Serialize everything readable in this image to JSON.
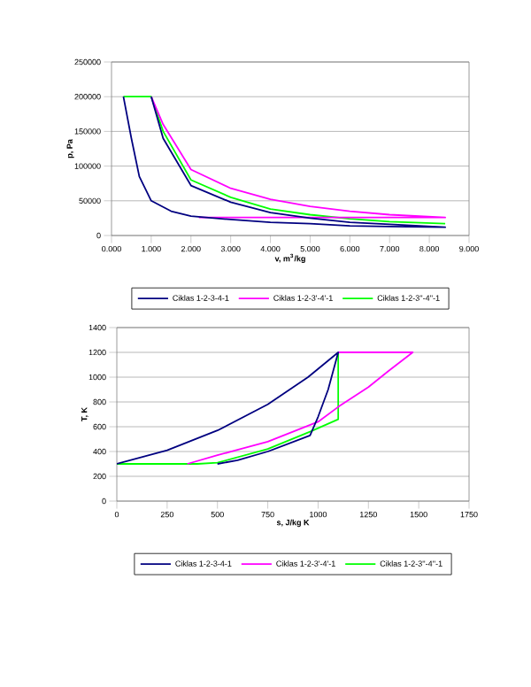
{
  "chart_data": [
    {
      "type": "line",
      "xlabel": "v, m$^{3}$/kg",
      "ylabel": "p, Pa",
      "xlim": [
        0,
        9
      ],
      "ylim": [
        0,
        250000
      ],
      "xticks": [
        {
          "value": 0,
          "label": "0.000"
        },
        {
          "value": 1,
          "label": "1.000"
        },
        {
          "value": 2,
          "label": "2.000"
        },
        {
          "value": 3,
          "label": "3.000"
        },
        {
          "value": 4,
          "label": "4.000"
        },
        {
          "value": 5,
          "label": "5.000"
        },
        {
          "value": 6,
          "label": "6.000"
        },
        {
          "value": 7,
          "label": "7.000"
        },
        {
          "value": 8,
          "label": "8.000"
        },
        {
          "value": 9,
          "label": "9.000"
        }
      ],
      "yticks": [
        0,
        50000,
        100000,
        150000,
        200000,
        250000
      ],
      "grid": "y",
      "legend": "bottom",
      "marker": "none",
      "line_style": "solid",
      "series": [
        {
          "name": "Ciklas 1-2-3-4-1",
          "color": "#000080",
          "x": [
            1.0,
            1.3,
            2,
            3,
            4,
            5,
            6,
            7,
            8.4,
            7,
            6,
            5,
            4,
            3,
            2,
            1.5,
            1.0,
            0.7,
            0.5,
            0.3
          ],
          "values": [
            200000,
            140000,
            72000,
            48000,
            33000,
            25000,
            19000,
            16000,
            12000,
            13000,
            14000,
            17000,
            19000,
            23000,
            28000,
            35000,
            50000,
            85000,
            140000,
            200000
          ]
        },
        {
          "name": "Ciklas 1-2-3'-4'-1",
          "color": "#ff00ff",
          "x": [
            1.0,
            1.3,
            2,
            3,
            4,
            5,
            6,
            7,
            8.4,
            2.2
          ],
          "values": [
            200000,
            160000,
            95000,
            68000,
            52000,
            42000,
            35000,
            30000,
            26000,
            26000
          ]
        },
        {
          "name": "Ciklas 1-2-3''-4''-1",
          "color": "#00ff00",
          "x": [
            0.3,
            1.0,
            1.3,
            2,
            3,
            4,
            5,
            6,
            7,
            8.4
          ],
          "values": [
            200000,
            200000,
            150000,
            80000,
            55000,
            38000,
            30000,
            24000,
            20000,
            17000
          ]
        }
      ]
    },
    {
      "type": "line",
      "xlabel": "s, J/kg K",
      "ylabel": "T, K",
      "xlim": [
        0,
        1750
      ],
      "ylim": [
        0,
        1400
      ],
      "xticks": [
        0,
        250,
        500,
        750,
        1000,
        1250,
        1500,
        1750
      ],
      "yticks": [
        0,
        200,
        400,
        600,
        800,
        1000,
        1200,
        1400
      ],
      "grid": "y",
      "legend": "bottom",
      "marker": "none",
      "line_style": "solid",
      "series": [
        {
          "name": "Ciklas 1-2-3-4-1",
          "color": "#000080",
          "x": [
            0,
            250,
            500,
            750,
            950,
            1100,
            1050,
            1000,
            960,
            750,
            600,
            500
          ],
          "values": [
            300,
            410,
            570,
            780,
            1000,
            1200,
            900,
            680,
            530,
            400,
            330,
            300
          ]
        },
        {
          "name": "Ciklas 1-2-3'-4'-1",
          "color": "#ff00ff",
          "x": [
            1100,
            1470,
            1350,
            1250,
            1100,
            1000,
            750,
            500,
            350
          ],
          "values": [
            1200,
            1200,
            1050,
            920,
            760,
            640,
            480,
            370,
            300
          ]
        },
        {
          "name": "Ciklas 1-2-3''-4''-1",
          "color": "#00ff00",
          "x": [
            1100,
            1100,
            960,
            750,
            500,
            400,
            0
          ],
          "values": [
            1200,
            660,
            560,
            420,
            310,
            300,
            300
          ]
        }
      ]
    }
  ]
}
